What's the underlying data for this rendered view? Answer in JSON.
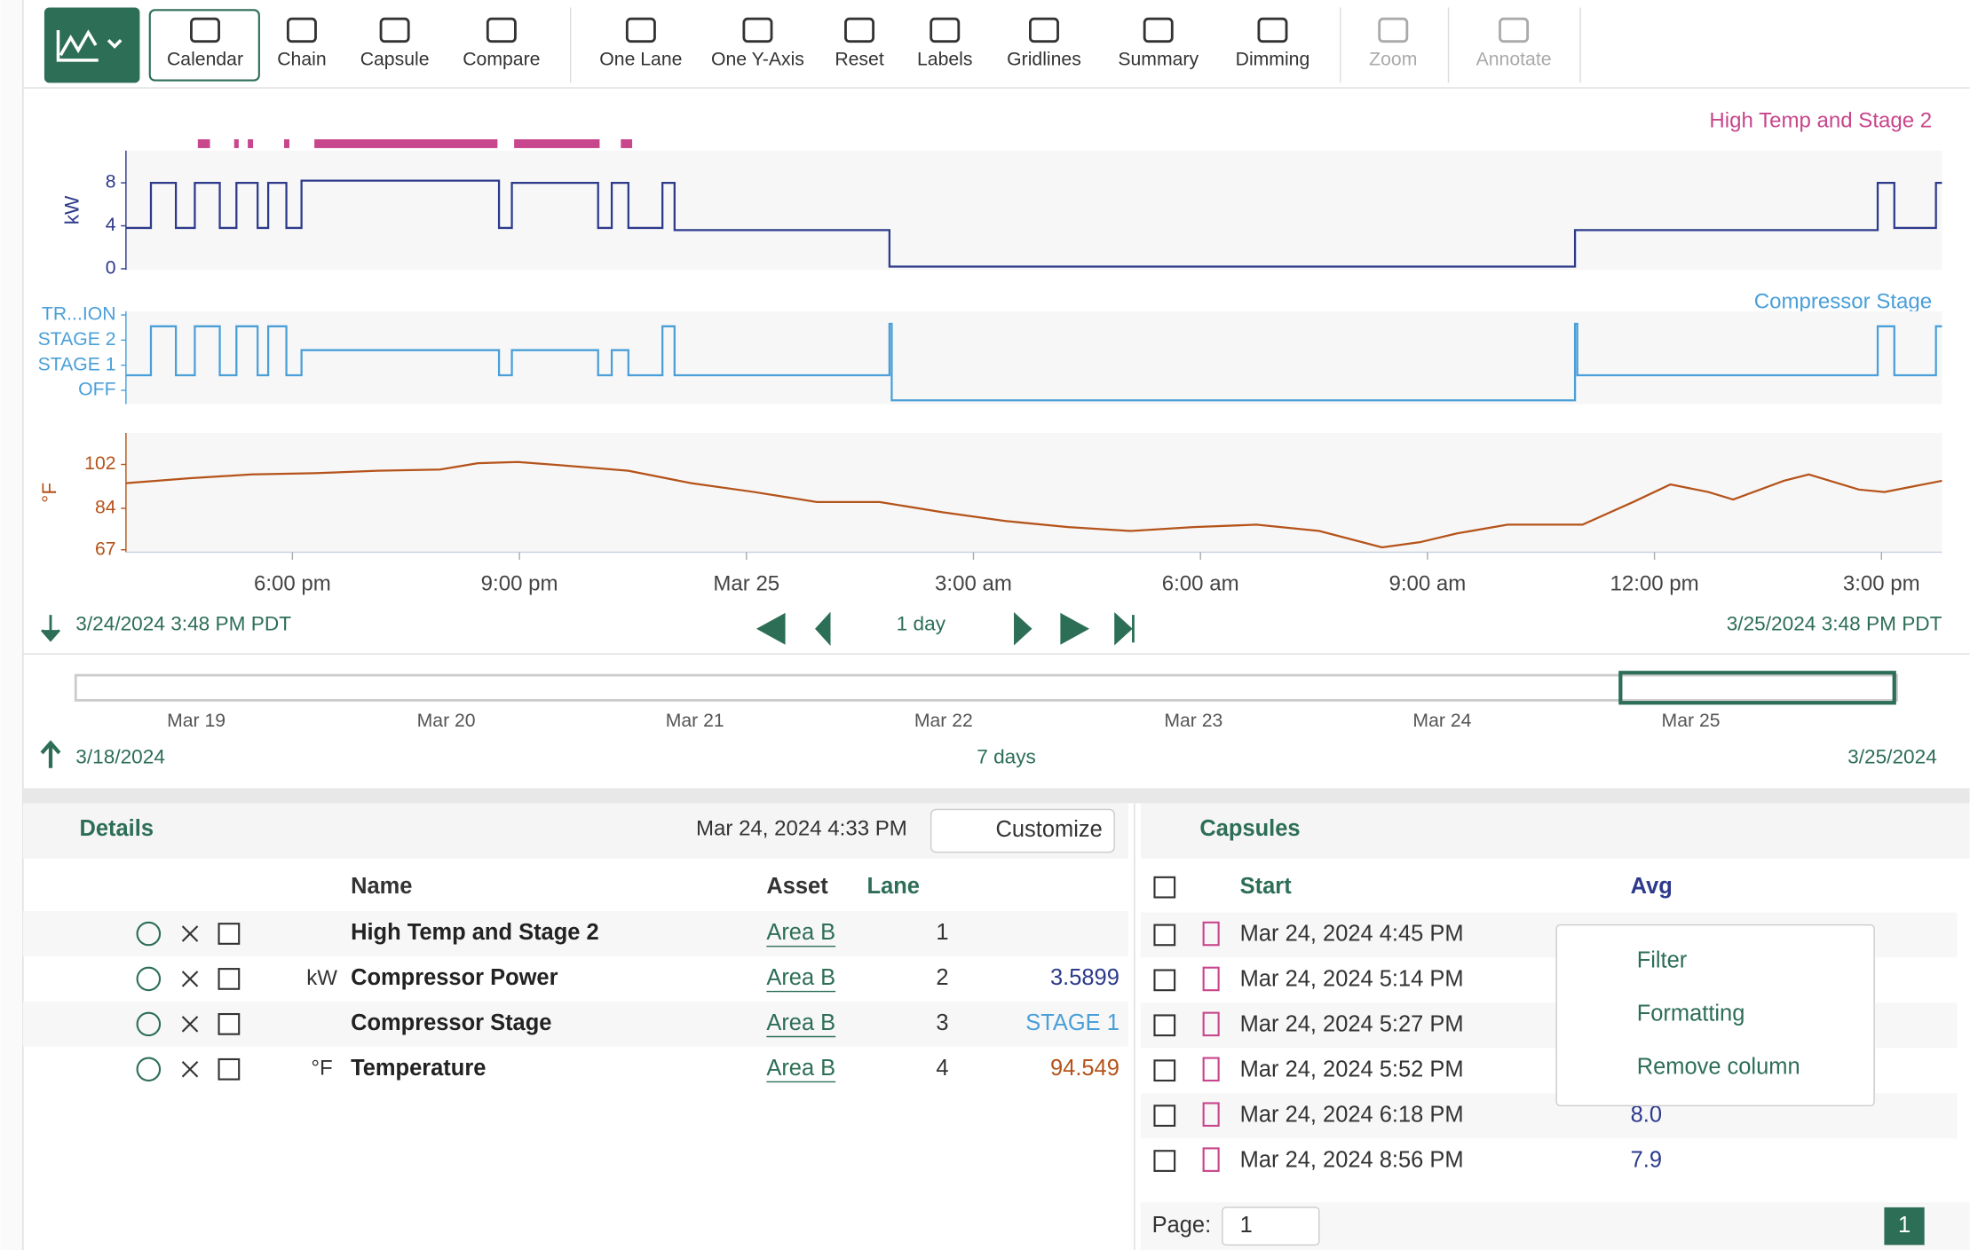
{
  "toolbar": {
    "buttons": [
      {
        "label": "Calendar"
      },
      {
        "label": "Chain"
      },
      {
        "label": "Capsule"
      },
      {
        "label": "Compare"
      },
      {
        "label": "One Lane"
      },
      {
        "label": "One Y-Axis"
      },
      {
        "label": "Reset"
      },
      {
        "label": "Labels"
      },
      {
        "label": "Gridlines"
      },
      {
        "label": "Summary"
      },
      {
        "label": "Dimming"
      },
      {
        "label": "Zoom",
        "disabled": true
      },
      {
        "label": "Annotate",
        "disabled": true
      }
    ]
  },
  "chart_data": [
    {
      "type": "step",
      "title": "Compressor Power",
      "y_label": "kW",
      "color": "#2d3a8c",
      "xlim": [
        0,
        24
      ],
      "ylim": [
        -0.1,
        11
      ],
      "yticks": [
        0,
        4,
        8
      ],
      "x": [
        0,
        0.33,
        0.66,
        0.91,
        1.24,
        1.46,
        1.74,
        1.88,
        2.12,
        2.32,
        4.93,
        5.1,
        6.24,
        6.42,
        6.64,
        7.09,
        7.25,
        10.09,
        19.15,
        23.15,
        23.37,
        23.92
      ],
      "values": [
        3.8,
        8,
        3.8,
        8,
        3.8,
        8,
        3.8,
        8,
        3.8,
        8.2,
        3.8,
        8,
        3.8,
        8,
        3.8,
        8,
        3.6,
        0.2,
        3.6,
        8,
        3.8,
        8
      ]
    },
    {
      "type": "step",
      "title": "Compressor Stage",
      "color": "#4a9fd8",
      "xlim": [
        0,
        24
      ],
      "ylim": [
        -0.55,
        3.15
      ],
      "yticks": [
        {
          "value": 0,
          "label": "OFF"
        },
        {
          "value": 1,
          "label": "STAGE 1"
        },
        {
          "value": 2,
          "label": "STAGE 2"
        },
        {
          "value": 3,
          "label": "TR...ION"
        }
      ],
      "x": [
        0,
        0.33,
        0.66,
        0.91,
        1.24,
        1.46,
        1.74,
        1.88,
        2.12,
        2.32,
        4.93,
        5.1,
        6.24,
        6.42,
        6.64,
        7.09,
        7.25,
        10.09,
        10.12,
        19.15,
        19.18,
        23.15,
        23.37,
        23.92
      ],
      "values": [
        0.6,
        2.55,
        0.6,
        2.55,
        0.6,
        2.55,
        0.6,
        2.55,
        0.6,
        1.6,
        0.6,
        1.6,
        0.6,
        1.6,
        0.6,
        2.55,
        0.6,
        2.65,
        -0.4,
        2.65,
        0.6,
        2.55,
        0.6,
        2.55
      ]
    },
    {
      "type": "line",
      "title": "Temperature",
      "y_label": "°F",
      "color": "#b5531a",
      "xlim": [
        0,
        24
      ],
      "ylim": [
        66,
        114.9
      ],
      "yticks": [
        67,
        84,
        102
      ],
      "xticks": [
        {
          "value": 2.2,
          "label": "6:00 pm"
        },
        {
          "value": 5.2,
          "label": "9:00 pm"
        },
        {
          "value": 8.2,
          "label": "Mar 25"
        },
        {
          "value": 11.2,
          "label": "3:00 am"
        },
        {
          "value": 14.2,
          "label": "6:00 am"
        },
        {
          "value": 17.2,
          "label": "9:00 am"
        },
        {
          "value": 20.2,
          "label": "12:00 pm"
        },
        {
          "value": 23.2,
          "label": "3:00 pm"
        }
      ],
      "x": [
        0,
        0.83,
        1.66,
        2.49,
        3.32,
        4.15,
        4.65,
        5.18,
        5.81,
        6.64,
        7.47,
        8.3,
        9.13,
        9.96,
        10.79,
        11.62,
        12.45,
        13.28,
        14.11,
        14.94,
        15.77,
        16.6,
        17.1,
        17.59,
        18.26,
        19.25,
        19.92,
        20.41,
        20.91,
        21.24,
        21.91,
        22.24,
        22.9,
        23.24,
        24
      ],
      "values": [
        94.3,
        96.3,
        97.9,
        98.4,
        99.4,
        99.9,
        102.5,
        103,
        101.5,
        99.4,
        94.3,
        90.7,
        86.6,
        86.6,
        82.4,
        78.8,
        76.3,
        74.7,
        76.3,
        77.3,
        74.7,
        68,
        70.1,
        73.7,
        77.3,
        77.3,
        86.6,
        93.8,
        90.7,
        87.6,
        95.3,
        97.9,
        91.7,
        90.7,
        95.3
      ]
    },
    {
      "type": "gantt",
      "title": "High Temp and Stage 2",
      "color": "#c8468c",
      "xlim": [
        0,
        24
      ],
      "starts": [
        0.95,
        1.43,
        1.61,
        2.09,
        2.49,
        5.13,
        6.54
      ],
      "ends": [
        1.11,
        1.49,
        1.68,
        2.16,
        4.91,
        6.26,
        6.69
      ]
    }
  ],
  "time_bar": {
    "start": "3/24/2024 3:48 PM  PDT",
    "duration": "1 day",
    "end": "3/25/2024 3:48 PM  PDT"
  },
  "overview": {
    "ticks": [
      "Mar 19",
      "Mar 20",
      "Mar 21",
      "Mar 22",
      "Mar 23",
      "Mar 24",
      "Mar 25"
    ],
    "start": "3/18/2024",
    "duration": "7 days",
    "end": "3/25/2024"
  },
  "details": {
    "title": "Details",
    "timestamp": "Mar 24, 2024 4:33 PM",
    "customize": "Customize",
    "headers": [
      "Name",
      "Asset",
      "Lane"
    ],
    "rows": [
      {
        "name": "High Temp and Stage 2",
        "asset": "Area B",
        "lane": 1
      },
      {
        "unit": "kW",
        "name": "Compressor Power",
        "asset": "Area B",
        "lane": 2,
        "value": "3.5899"
      },
      {
        "name": "Compressor Stage",
        "asset": "Area B",
        "lane": 3,
        "value": "STAGE 1"
      },
      {
        "unit": "°F",
        "name": "Temperature",
        "asset": "Area B",
        "lane": 4,
        "value": "94.549"
      }
    ]
  },
  "capsules": {
    "title": "Capsules",
    "headers": [
      "Start",
      "Avg"
    ],
    "rows": [
      {
        "start": "Mar 24, 2024 4:45 PM"
      },
      {
        "start": "Mar 24, 2024 5:14 PM"
      },
      {
        "start": "Mar 24, 2024 5:27 PM"
      },
      {
        "start": "Mar 24, 2024 5:52 PM"
      },
      {
        "start": "Mar 24, 2024 6:18 PM",
        "avg": "8.0"
      },
      {
        "start": "Mar 24, 2024 8:56 PM",
        "avg": "7.9"
      }
    ],
    "menu": [
      "Filter",
      "Formatting",
      "Remove column"
    ],
    "page_label": "Page:",
    "page_select": "1",
    "page_current": "1"
  }
}
